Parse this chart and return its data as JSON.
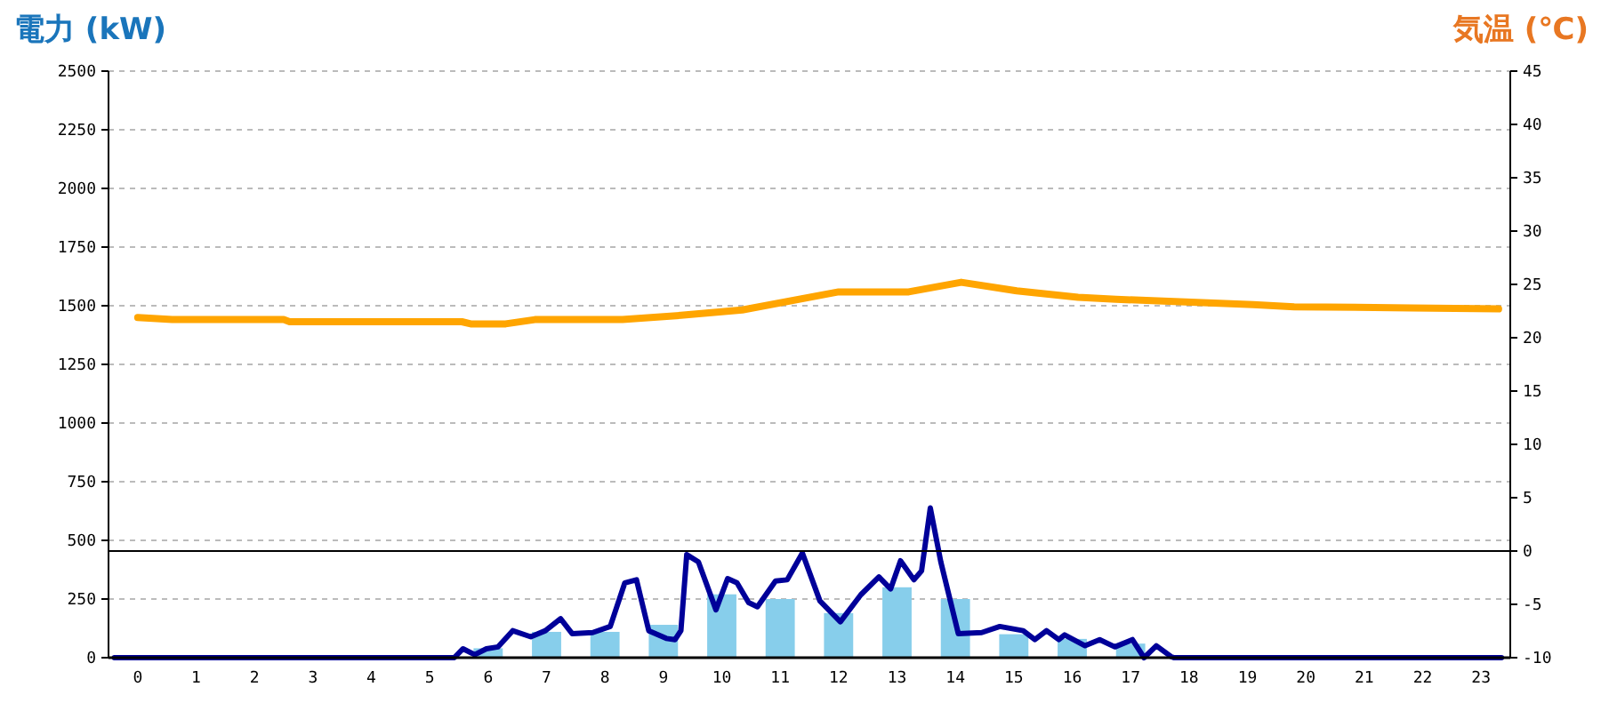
{
  "chart_data": {
    "type": "bar",
    "ylabel": "電力 (kW)",
    "y2label": "気温 (℃)",
    "xlim": [
      -0.5,
      23.5
    ],
    "xticks": [
      0,
      1,
      2,
      3,
      4,
      5,
      6,
      7,
      8,
      9,
      10,
      11,
      12,
      13,
      14,
      15,
      16,
      17,
      18,
      19,
      20,
      21,
      22,
      23
    ],
    "ylim": [
      0,
      2500
    ],
    "yticks": [
      0,
      250,
      500,
      750,
      1000,
      1250,
      1500,
      1750,
      2000,
      2250,
      2500
    ],
    "y2lim": [
      -10,
      45
    ],
    "y2ticks": [
      -10,
      -5,
      0,
      5,
      10,
      15,
      20,
      25,
      30,
      35,
      40,
      45
    ],
    "grid": "y",
    "ref_lines": [
      {
        "axis": "y2",
        "value": 0,
        "color": "#000000"
      }
    ],
    "series": [
      {
        "color": "#87ceeb",
        "x": [
          0,
          1,
          2,
          3,
          4,
          5,
          6,
          7,
          8,
          9,
          10,
          11,
          12,
          13,
          14,
          15,
          16,
          17,
          18,
          19,
          20,
          21,
          22,
          23
        ],
        "values": [
          0,
          0,
          0,
          0,
          0,
          0,
          40,
          110,
          110,
          140,
          270,
          250,
          190,
          300,
          250,
          100,
          80,
          60,
          0,
          0,
          0,
          0,
          0,
          0
        ]
      },
      {
        "type": "line",
        "color": "#000099",
        "x": [
          -0.4,
          5.42,
          5.57,
          5.77,
          5.97,
          6.17,
          6.42,
          6.73,
          6.98,
          7.24,
          7.44,
          7.79,
          8.09,
          8.34,
          8.54,
          8.75,
          9.05,
          9.2,
          9.3,
          9.4,
          9.6,
          9.9,
          10.1,
          10.26,
          10.46,
          10.61,
          10.92,
          11.12,
          11.38,
          11.68,
          12.03,
          12.38,
          12.69,
          12.89,
          13.06,
          13.29,
          13.42,
          13.57,
          13.75,
          14.05,
          14.45,
          14.76,
          15.16,
          15.36,
          15.56,
          15.77,
          15.87,
          16.22,
          16.47,
          16.73,
          17.03,
          17.23,
          17.44,
          17.69,
          17.74,
          23.35
        ],
        "values": [
          0,
          0,
          38,
          13,
          38,
          46,
          115,
          89,
          115,
          166,
          102,
          107,
          133,
          319,
          332,
          115,
          82,
          77,
          115,
          439,
          408,
          204,
          337,
          319,
          235,
          217,
          327,
          332,
          446,
          242,
          153,
          268,
          344,
          293,
          413,
          332,
          370,
          638,
          408,
          102,
          107,
          133,
          115,
          77,
          115,
          77,
          97,
          51,
          77,
          46,
          77,
          0,
          51,
          5,
          0,
          0
        ]
      },
      {
        "type": "line",
        "axis": "y2",
        "color": "#ffa500",
        "x": [
          0,
          0.59,
          2.5,
          2.6,
          5.55,
          5.7,
          6.3,
          6.8,
          8.3,
          9.3,
          10.35,
          12.0,
          13.2,
          14.1,
          15.05,
          16.1,
          16.75,
          17.75,
          19.1,
          19.8,
          21.8,
          23.3
        ],
        "values": [
          21.9,
          21.7,
          21.7,
          21.5,
          21.5,
          21.3,
          21.3,
          21.7,
          21.7,
          22.1,
          22.6,
          24.3,
          24.3,
          25.2,
          24.4,
          23.8,
          23.6,
          23.4,
          23.1,
          22.9,
          22.8,
          22.7
        ]
      }
    ]
  }
}
